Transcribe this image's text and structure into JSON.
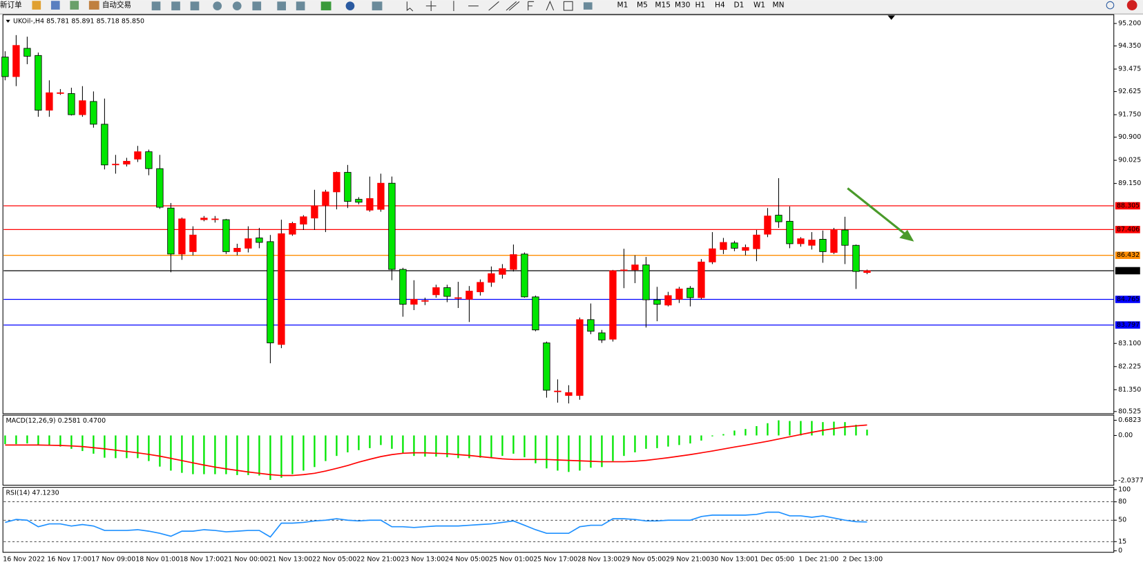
{
  "toolbar": {
    "buttons": [
      "新订单",
      "自动交易"
    ],
    "timeframes": [
      "M1",
      "M5",
      "M15",
      "M30",
      "H1",
      "H4",
      "D1",
      "W1",
      "MN"
    ]
  },
  "chart_data": [
    {
      "type": "candlestick",
      "title": "UKOil-,H4  85.781 85.891 85.718 85.850",
      "up_color": "#ff0000",
      "down_color": "#00e600",
      "categories": [
        "16 Nov 2022",
        null,
        null,
        null,
        "16 Nov 17:00",
        null,
        null,
        null,
        "17 Nov 09:00",
        null,
        null,
        null,
        "18 Nov 01:00",
        null,
        null,
        null,
        "18 Nov 17:00",
        null,
        null,
        null,
        "21 Nov 00:00",
        null,
        null,
        null,
        "21 Nov 13:00",
        null,
        null,
        null,
        "22 Nov 05:00",
        null,
        null,
        null,
        "22 Nov 21:00",
        null,
        null,
        null,
        "23 Nov 13:00",
        null,
        null,
        null,
        "24 Nov 05:00",
        null,
        null,
        null,
        "25 Nov 01:00",
        null,
        null,
        null,
        "25 Nov 17:00",
        null,
        null,
        null,
        "28 Nov 13:00",
        null,
        null,
        null,
        "29 Nov 05:00",
        null,
        null,
        null,
        "29 Nov 21:00",
        null,
        null,
        null,
        "30 Nov 13:00",
        null,
        null,
        null,
        "1 Dec 05:00",
        null,
        null,
        null,
        "1 Dec 21:00",
        null,
        null,
        null,
        "2 Dec 13:00",
        null,
        null
      ],
      "open": [
        93.93,
        93.19,
        94.26,
        93.99,
        91.92,
        92.58,
        92.55,
        91.75,
        92.25,
        91.39,
        89.88,
        89.88,
        90.07,
        90.35,
        89.71,
        88.22,
        86.48,
        86.57,
        87.78,
        87.81,
        87.78,
        86.57,
        86.7,
        87.09,
        86.95,
        83.06,
        87.23,
        87.61,
        87.84,
        88.33,
        88.83,
        89.57,
        88.55,
        88.14,
        88.17,
        89.16,
        85.9,
        84.58,
        84.72,
        84.94,
        85.21,
        84.83,
        84.77,
        85.05,
        85.41,
        85.71,
        85.9,
        86.48,
        84.86,
        83.12,
        81.3,
        81.13,
        81.13,
        84.0,
        83.5,
        83.26,
        85.88,
        85.88,
        86.07,
        84.75,
        84.55,
        84.77,
        85.19,
        84.83,
        86.18,
        86.65,
        86.9,
        86.62,
        86.68,
        87.23,
        87.95,
        87.72,
        86.87,
        86.81,
        87.04,
        86.54,
        87.39,
        86.81,
        85.781
      ],
      "high": [
        94.15,
        94.76,
        94.7,
        94.1,
        93.05,
        92.72,
        92.77,
        92.83,
        92.63,
        92.36,
        90.23,
        90.12,
        90.57,
        90.43,
        90.23,
        88.41,
        87.86,
        87.53,
        87.92,
        87.92,
        87.81,
        86.87,
        87.53,
        87.47,
        87.2,
        87.78,
        87.7,
        87.95,
        88.91,
        88.91,
        89.6,
        89.85,
        88.63,
        89.41,
        89.52,
        89.41,
        85.96,
        85.49,
        84.83,
        85.32,
        85.32,
        85.43,
        85.27,
        85.52,
        86.01,
        86.1,
        86.84,
        86.54,
        84.91,
        83.17,
        81.74,
        81.52,
        84.08,
        84.61,
        83.61,
        85.88,
        86.68,
        86.43,
        86.37,
        85.24,
        85.05,
        85.24,
        85.27,
        86.29,
        87.31,
        87.09,
        86.98,
        86.84,
        87.39,
        88.22,
        89.35,
        88.28,
        87.12,
        87.31,
        87.37,
        87.47,
        87.89,
        86.84,
        85.891
      ],
      "low": [
        93.05,
        92.83,
        93.66,
        91.67,
        91.67,
        92.5,
        91.72,
        91.67,
        91.26,
        89.68,
        89.52,
        89.79,
        89.96,
        89.46,
        88.19,
        85.79,
        86.26,
        86.43,
        87.72,
        87.67,
        86.48,
        86.43,
        86.54,
        86.7,
        82.35,
        82.92,
        87.17,
        87.39,
        87.39,
        87.31,
        88.17,
        88.22,
        88.36,
        88.08,
        88.08,
        85.49,
        84.11,
        84.36,
        84.55,
        84.83,
        84.66,
        84.44,
        83.91,
        84.91,
        85.24,
        85.55,
        85.82,
        84.83,
        83.56,
        81.05,
        80.86,
        80.83,
        80.97,
        83.45,
        83.12,
        83.17,
        85.19,
        85.38,
        83.7,
        83.94,
        84.5,
        84.63,
        84.5,
        84.77,
        86.1,
        86.48,
        86.59,
        86.43,
        86.21,
        87.12,
        87.47,
        86.7,
        86.76,
        86.65,
        86.15,
        86.48,
        86.1,
        85.16,
        85.718
      ],
      "close": [
        93.19,
        94.37,
        93.96,
        91.92,
        92.58,
        92.58,
        91.75,
        92.28,
        91.39,
        89.85,
        89.88,
        89.99,
        90.35,
        89.71,
        88.25,
        86.48,
        87.81,
        87.2,
        87.84,
        87.81,
        86.57,
        86.7,
        87.06,
        86.92,
        83.12,
        87.25,
        87.64,
        87.89,
        88.3,
        88.83,
        89.57,
        88.47,
        88.44,
        88.58,
        89.16,
        85.9,
        84.58,
        84.77,
        84.72,
        85.21,
        84.88,
        84.83,
        85.08,
        85.41,
        85.74,
        85.93,
        86.46,
        84.86,
        83.61,
        81.33,
        81.3,
        81.24,
        84.0,
        83.56,
        83.23,
        85.85,
        85.88,
        86.07,
        84.75,
        84.58,
        84.91,
        85.16,
        84.83,
        86.18,
        86.68,
        86.92,
        86.7,
        86.73,
        87.2,
        87.92,
        87.7,
        86.87,
        87.06,
        87.01,
        86.57,
        87.39,
        86.81,
        85.82,
        85.85
      ],
      "ylim": [
        80.525,
        95.2
      ],
      "yticks": [
        {
          "value": 95.2,
          "label": "95.200"
        },
        {
          "value": 94.35,
          "label": "94.350"
        },
        {
          "value": 93.475,
          "label": "93.475"
        },
        {
          "value": 92.625,
          "label": "92.625"
        },
        {
          "value": 91.75,
          "label": "91.750"
        },
        {
          "value": 90.9,
          "label": "90.900"
        },
        {
          "value": 90.025,
          "label": "90.025"
        },
        {
          "value": 89.15,
          "label": "89.150"
        },
        {
          "value": 83.1,
          "label": "83.100"
        },
        {
          "value": 82.225,
          "label": "82.225"
        },
        {
          "value": 81.35,
          "label": "81.350"
        },
        {
          "value": 80.525,
          "label": "80.525"
        }
      ],
      "levels": [
        {
          "value": 88.305,
          "label": "88.305",
          "color": "#ff0000"
        },
        {
          "value": 87.406,
          "label": "87.406",
          "color": "#ff0000"
        },
        {
          "value": 86.432,
          "label": "86.432",
          "color": "#ff8c00"
        },
        {
          "value": 85.85,
          "label": "85.850",
          "color": "#000000"
        },
        {
          "value": 84.765,
          "label": "84.765",
          "color": "#0000ff"
        },
        {
          "value": 83.797,
          "label": "83.797",
          "color": "#0000ff"
        }
      ]
    },
    {
      "type": "macd",
      "title": "MACD(12,26,9) 0.2581 0.4700",
      "series": [
        {
          "name": "MACD",
          "color": "#00e600",
          "values": [
            -0.39,
            -0.39,
            -0.36,
            -0.42,
            -0.45,
            -0.5,
            -0.6,
            -0.7,
            -0.82,
            -1.0,
            -1.02,
            -1.02,
            -1.02,
            -1.15,
            -1.4,
            -1.58,
            -1.68,
            -1.74,
            -1.74,
            -1.74,
            -1.74,
            -1.78,
            -1.78,
            -1.8,
            -2.0,
            -1.9,
            -1.74,
            -1.58,
            -1.42,
            -1.15,
            -0.92,
            -0.76,
            -0.66,
            -0.57,
            -0.43,
            -0.6,
            -0.82,
            -0.92,
            -0.95,
            -0.95,
            -0.98,
            -1.02,
            -1.02,
            -1.0,
            -0.98,
            -0.92,
            -0.82,
            -0.98,
            -1.25,
            -1.48,
            -1.58,
            -1.64,
            -1.58,
            -1.45,
            -1.42,
            -1.15,
            -0.92,
            -0.76,
            -0.6,
            -0.57,
            -0.5,
            -0.43,
            -0.36,
            -0.23,
            -0.04,
            0.06,
            0.22,
            0.29,
            0.42,
            0.55,
            0.68,
            0.65,
            0.65,
            0.65,
            0.6,
            0.62,
            0.6,
            0.48,
            0.26
          ]
        },
        {
          "name": "Signal",
          "color": "#ff0000",
          "values": [
            -0.43,
            -0.43,
            -0.43,
            -0.43,
            -0.44,
            -0.45,
            -0.47,
            -0.5,
            -0.55,
            -0.6,
            -0.66,
            -0.72,
            -0.78,
            -0.85,
            -0.93,
            -1.03,
            -1.13,
            -1.23,
            -1.33,
            -1.42,
            -1.5,
            -1.57,
            -1.64,
            -1.7,
            -1.76,
            -1.8,
            -1.8,
            -1.76,
            -1.7,
            -1.6,
            -1.48,
            -1.35,
            -1.2,
            -1.07,
            -0.95,
            -0.86,
            -0.8,
            -0.78,
            -0.78,
            -0.8,
            -0.82,
            -0.86,
            -0.9,
            -0.95,
            -1.0,
            -1.05,
            -1.08,
            -1.08,
            -1.08,
            -1.08,
            -1.1,
            -1.12,
            -1.14,
            -1.16,
            -1.18,
            -1.18,
            -1.18,
            -1.16,
            -1.12,
            -1.06,
            -1.0,
            -0.93,
            -0.86,
            -0.78,
            -0.7,
            -0.61,
            -0.52,
            -0.44,
            -0.35,
            -0.26,
            -0.16,
            -0.06,
            0.04,
            0.14,
            0.23,
            0.31,
            0.38,
            0.43,
            0.47
          ]
        }
      ],
      "ylim": [
        -2.0377,
        0.6823
      ],
      "yticks": [
        {
          "value": 0.6823,
          "label": "0.6823"
        },
        {
          "value": 0,
          "label": "0.00"
        },
        {
          "value": -2.0377,
          "label": "-2.0377"
        }
      ]
    },
    {
      "type": "line",
      "title": "RSI(14) 47.1230",
      "series": [
        {
          "name": "RSI",
          "color": "#1e90ff",
          "values": [
            46.4,
            51.2,
            50,
            39.3,
            44,
            44,
            40.5,
            42.9,
            40.5,
            33.3,
            33.3,
            33.3,
            34.5,
            32.1,
            28.6,
            23.8,
            32.1,
            32.1,
            34.5,
            33.3,
            31,
            32.1,
            33.3,
            33.3,
            22.6,
            45.2,
            45.2,
            46.4,
            48.8,
            50,
            52.4,
            50,
            48.8,
            50,
            50,
            39.3,
            39.3,
            38.1,
            39.3,
            40.5,
            40.5,
            40.5,
            41.7,
            42.9,
            44,
            46.4,
            48.8,
            41.7,
            34.5,
            28.6,
            28.6,
            28.6,
            39.3,
            41.7,
            41.7,
            52.4,
            52.4,
            51.2,
            48.8,
            48.8,
            50,
            50,
            50,
            56,
            58.3,
            58.3,
            58.3,
            58.3,
            59.5,
            63.1,
            63.1,
            57.1,
            57.1,
            54.8,
            57.1,
            53.6,
            50,
            47.6,
            47.1
          ]
        }
      ],
      "ylim": [
        0,
        100
      ],
      "yticks": [
        100,
        80,
        50,
        15,
        0
      ],
      "level_lines": [
        80,
        50,
        15
      ]
    }
  ]
}
